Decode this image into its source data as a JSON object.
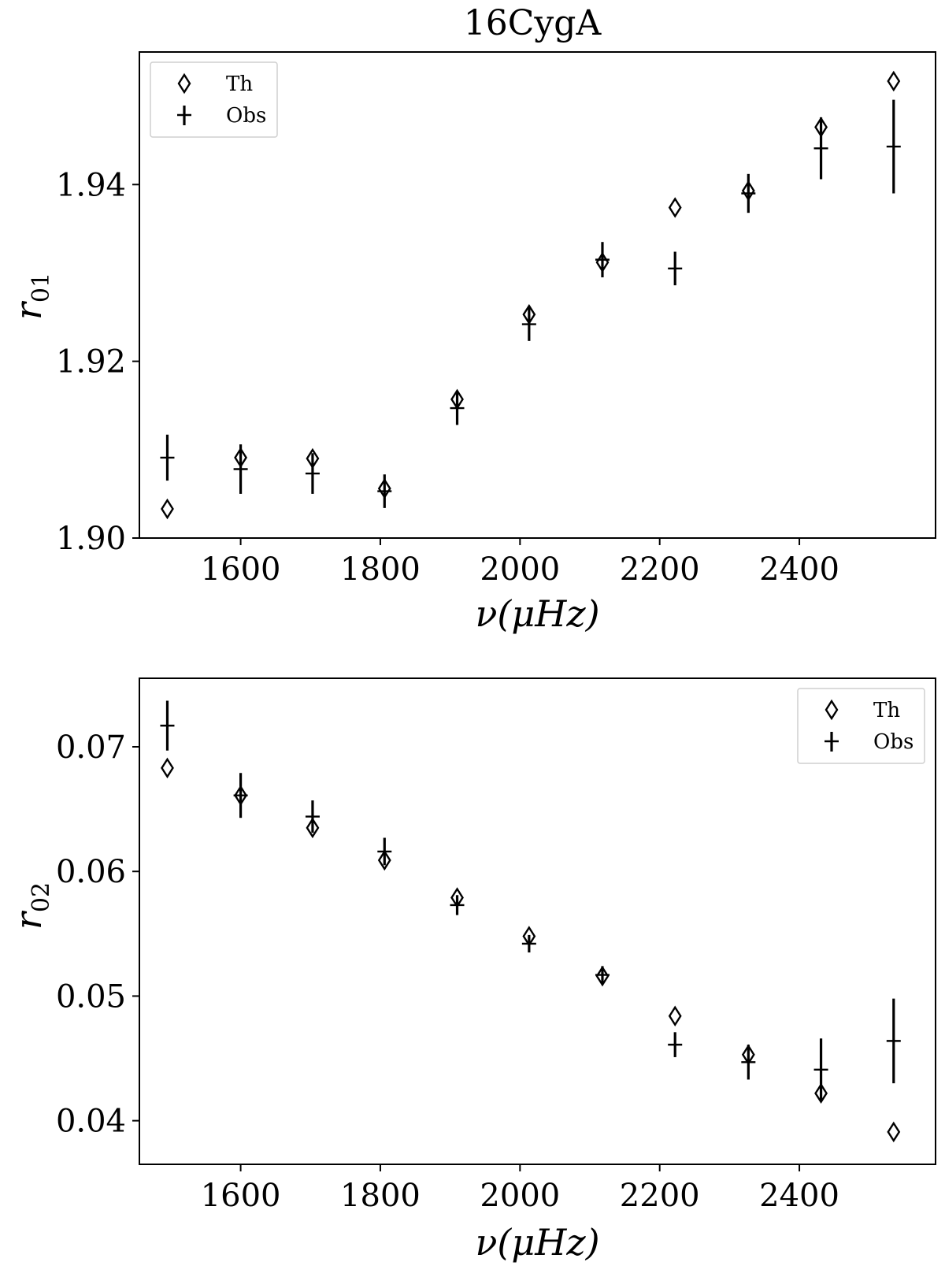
{
  "figure": {
    "title": "16CygA"
  },
  "legend_items": {
    "th": "Th",
    "obs": "Obs"
  },
  "chart_data": [
    {
      "type": "scatter",
      "title": "16CygA",
      "xlabel": "ν(μHz)",
      "ylabel": "r",
      "ylabel_subscript": "01",
      "xlim": [
        1455,
        2595
      ],
      "ylim": [
        1.9,
        1.955
      ],
      "xticks": [
        1600,
        1800,
        2000,
        2200,
        2400
      ],
      "yticks": [
        1.9,
        1.92,
        1.94
      ],
      "ytick_labels": [
        "1.90",
        "1.92",
        "1.94"
      ],
      "grid": false,
      "legend_position": "top-left",
      "series": [
        {
          "name": "Th",
          "marker": "diamond",
          "x": [
            1495,
            1600,
            1703,
            1806,
            1910,
            2013,
            2118,
            2222,
            2327,
            2431,
            2535
          ],
          "y": [
            1.9033,
            1.9091,
            1.909,
            1.9056,
            1.9157,
            1.9253,
            1.9312,
            1.9374,
            1.9393,
            1.9465,
            1.9517
          ]
        },
        {
          "name": "Obs",
          "marker": "errorbar",
          "x": [
            1495,
            1600,
            1703,
            1806,
            1910,
            2013,
            2118,
            2222,
            2327,
            2431,
            2535
          ],
          "y": [
            1.9091,
            1.9078,
            1.9073,
            1.9053,
            1.9147,
            1.9242,
            1.9315,
            1.9305,
            1.939,
            1.9441,
            1.9443
          ],
          "yerr": [
            0.0026,
            0.0028,
            0.0023,
            0.0019,
            0.0019,
            0.0019,
            0.002,
            0.0019,
            0.0022,
            0.0035,
            0.0053
          ]
        }
      ]
    },
    {
      "type": "scatter",
      "title": "",
      "xlabel": "ν(μHz)",
      "ylabel": "r",
      "ylabel_subscript": "02",
      "xlim": [
        1455,
        2595
      ],
      "ylim": [
        0.0365,
        0.0755
      ],
      "xticks": [
        1600,
        1800,
        2000,
        2200,
        2400
      ],
      "yticks": [
        0.04,
        0.05,
        0.06,
        0.07
      ],
      "ytick_labels": [
        "0.04",
        "0.05",
        "0.06",
        "0.07"
      ],
      "grid": false,
      "legend_position": "top-right",
      "series": [
        {
          "name": "Th",
          "marker": "diamond",
          "x": [
            1495,
            1600,
            1703,
            1806,
            1910,
            2013,
            2118,
            2222,
            2327,
            2431,
            2535
          ],
          "y": [
            0.0683,
            0.0661,
            0.0635,
            0.0609,
            0.0579,
            0.0548,
            0.0516,
            0.0484,
            0.0453,
            0.0422,
            0.0391
          ]
        },
        {
          "name": "Obs",
          "marker": "errorbar",
          "x": [
            1495,
            1600,
            1703,
            1806,
            1910,
            2013,
            2118,
            2222,
            2327,
            2431,
            2535
          ],
          "y": [
            0.0717,
            0.0661,
            0.0644,
            0.0616,
            0.0573,
            0.0542,
            0.0517,
            0.0461,
            0.0447,
            0.0441,
            0.0464
          ],
          "yerr": [
            0.002,
            0.0018,
            0.0013,
            0.0011,
            0.0008,
            0.0007,
            0.0007,
            0.001,
            0.0014,
            0.0025,
            0.0034
          ]
        }
      ]
    }
  ]
}
